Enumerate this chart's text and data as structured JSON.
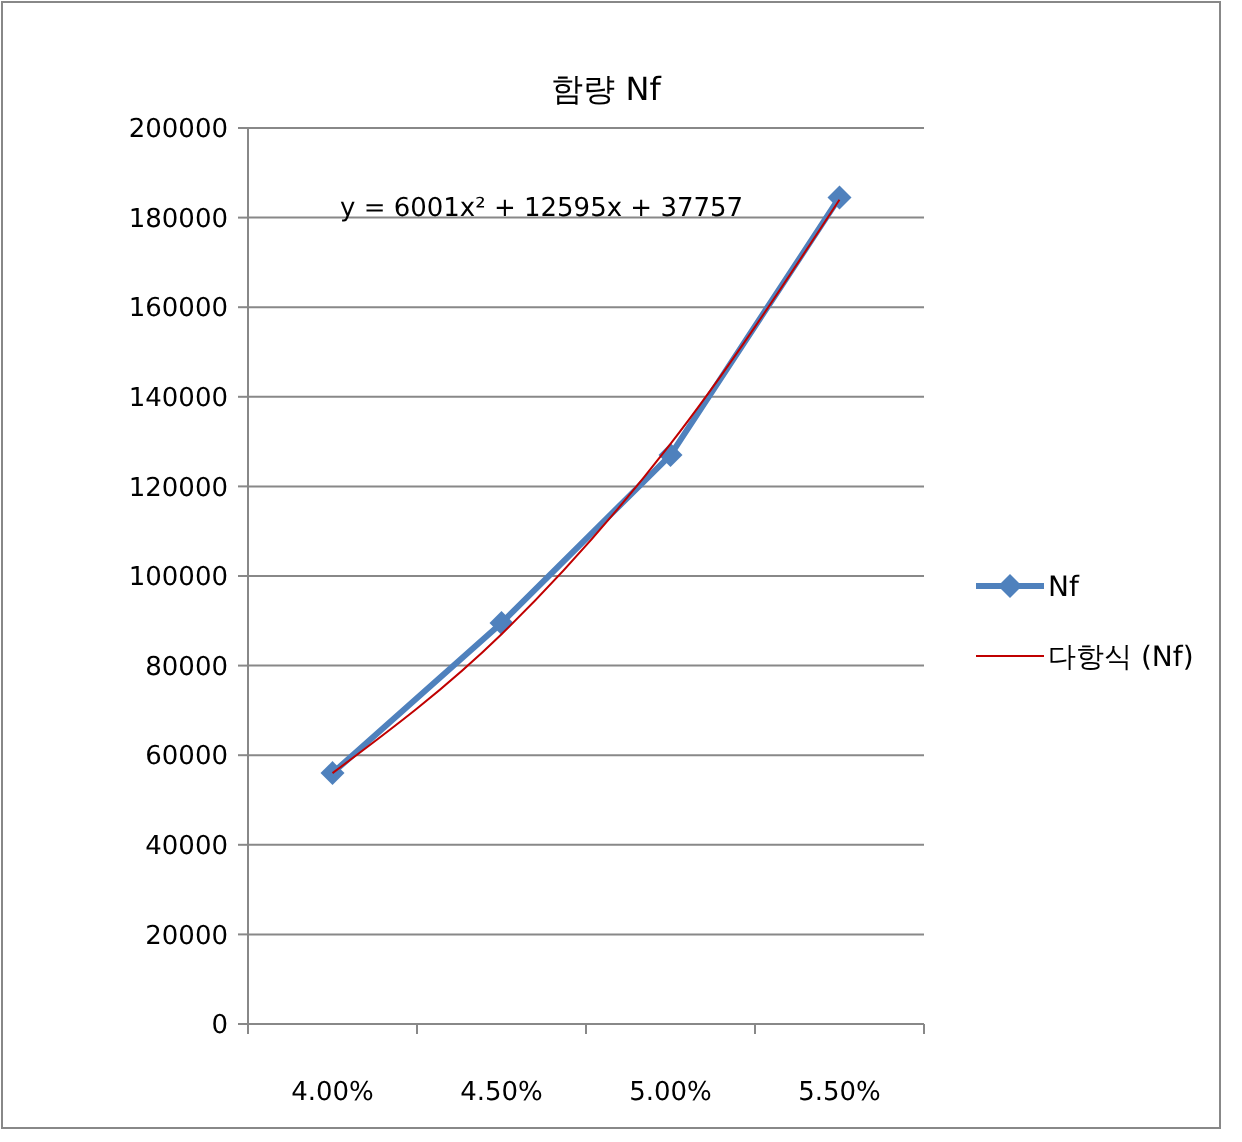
{
  "chart_data": {
    "type": "line",
    "title": "함량 Nf",
    "categories": [
      "4.00%",
      "4.50%",
      "5.00%",
      "5.50%"
    ],
    "series": [
      {
        "name": "Nf",
        "color": "#4f81bd",
        "values": [
          56000,
          89500,
          127000,
          184500
        ],
        "marker": "diamond"
      },
      {
        "name": "다항식 (Nf)",
        "color": "#c00000",
        "values": [
          56000,
          87000,
          129500,
          184000
        ],
        "marker": "none"
      }
    ],
    "ylim": [
      0,
      200000
    ],
    "yticks": [
      0,
      20000,
      40000,
      60000,
      80000,
      100000,
      120000,
      140000,
      160000,
      180000,
      200000
    ],
    "grid": "y",
    "legend": "right",
    "line_style": "solid",
    "annotations": [
      "y = 6001x² + 12595x + 37757"
    ]
  }
}
